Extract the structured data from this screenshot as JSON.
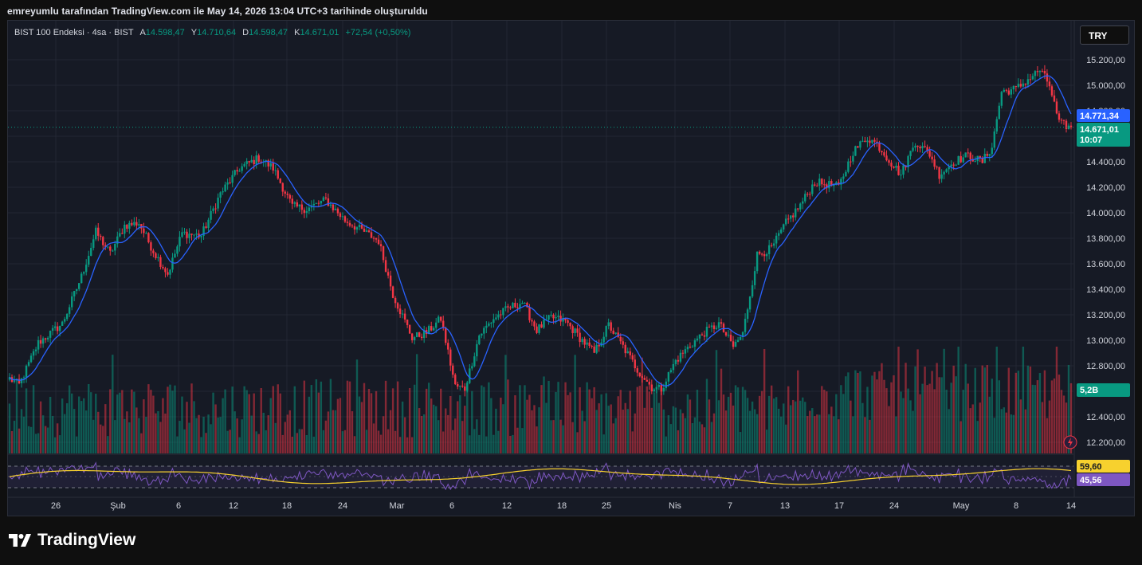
{
  "caption": "emreyumlu tarafından TradingView.com ile May 14, 2026 13:04 UTC+3 tarihinde oluşturuldu",
  "legend": {
    "symbol": "BIST 100 Endeksi · 4sa · BIST",
    "open_label": "A",
    "open": "14.598,47",
    "high_label": "Y",
    "high": "14.710,64",
    "low_label": "D",
    "low": "14.598,47",
    "close_label": "K",
    "close": "14.671,01",
    "change": "+72,54 (+0,50%)"
  },
  "currency_button": "TRY",
  "brand": "TradingView",
  "colors": {
    "up": "#089981",
    "down": "#f23645",
    "ma": "#2962ff",
    "rsi": "#7e57c2",
    "rsi_ma": "#f7d12e",
    "background": "#161a25"
  },
  "chart_data": {
    "type": "candlestick",
    "price_axis": {
      "ticks": [
        "15.200,00",
        "15.000,00",
        "14.800,00",
        "14.600,00",
        "14.400,00",
        "14.200,00",
        "14.000,00",
        "13.800,00",
        "13.600,00",
        "13.400,00",
        "13.200,00",
        "13.000,00",
        "12.800,00",
        "12.600,00",
        "12.400,00",
        "12.200,00"
      ],
      "range": [
        12120,
        15300
      ]
    },
    "time_axis": [
      "26",
      "Şub",
      "6",
      "12",
      "18",
      "24",
      "Mar",
      "6",
      "12",
      "18",
      "25",
      "Nis",
      "7",
      "13",
      "17",
      "24",
      "May",
      "8",
      "14"
    ],
    "price_labels": {
      "ma_value": "14.771,34",
      "last_price": "14.671,01",
      "countdown": "10:07",
      "volume": "5,2B",
      "rsi_ma": "59,60",
      "rsi": "45,56"
    },
    "anchors": [
      [
        0,
        12700
      ],
      [
        4,
        12650
      ],
      [
        12,
        12980
      ],
      [
        22,
        13130
      ],
      [
        30,
        13500
      ],
      [
        36,
        13850
      ],
      [
        42,
        13680
      ],
      [
        48,
        13900
      ],
      [
        54,
        13920
      ],
      [
        60,
        13700
      ],
      [
        66,
        13520
      ],
      [
        72,
        13840
      ],
      [
        80,
        13820
      ],
      [
        88,
        14150
      ],
      [
        96,
        14350
      ],
      [
        104,
        14430
      ],
      [
        110,
        14350
      ],
      [
        118,
        14050
      ],
      [
        124,
        14030
      ],
      [
        132,
        14100
      ],
      [
        140,
        13940
      ],
      [
        148,
        13850
      ],
      [
        154,
        13780
      ],
      [
        160,
        13360
      ],
      [
        168,
        13020
      ],
      [
        174,
        13060
      ],
      [
        180,
        13170
      ],
      [
        186,
        12640
      ],
      [
        190,
        12620
      ],
      [
        196,
        13040
      ],
      [
        202,
        13170
      ],
      [
        208,
        13250
      ],
      [
        214,
        13300
      ],
      [
        220,
        13080
      ],
      [
        226,
        13180
      ],
      [
        232,
        13150
      ],
      [
        238,
        13020
      ],
      [
        244,
        12900
      ],
      [
        250,
        13120
      ],
      [
        256,
        12950
      ],
      [
        262,
        12770
      ],
      [
        268,
        12630
      ],
      [
        272,
        12620
      ],
      [
        278,
        12840
      ],
      [
        284,
        12960
      ],
      [
        290,
        13060
      ],
      [
        296,
        13130
      ],
      [
        302,
        12950
      ],
      [
        306,
        13050
      ],
      [
        312,
        13670
      ],
      [
        318,
        13720
      ],
      [
        324,
        13920
      ],
      [
        330,
        14060
      ],
      [
        336,
        14240
      ],
      [
        342,
        14220
      ],
      [
        346,
        14200
      ],
      [
        352,
        14480
      ],
      [
        358,
        14590
      ],
      [
        362,
        14540
      ],
      [
        368,
        14390
      ],
      [
        372,
        14300
      ],
      [
        378,
        14560
      ],
      [
        384,
        14460
      ],
      [
        388,
        14300
      ],
      [
        394,
        14400
      ],
      [
        400,
        14450
      ],
      [
        406,
        14400
      ],
      [
        410,
        14520
      ],
      [
        414,
        14950
      ],
      [
        420,
        14970
      ],
      [
        426,
        15060
      ],
      [
        430,
        15120
      ],
      [
        434,
        15000
      ],
      [
        438,
        14700
      ],
      [
        443,
        14671
      ]
    ],
    "rsi": {
      "value": 45.56,
      "ma": 59.6
    },
    "volume_last": "5,2B"
  }
}
